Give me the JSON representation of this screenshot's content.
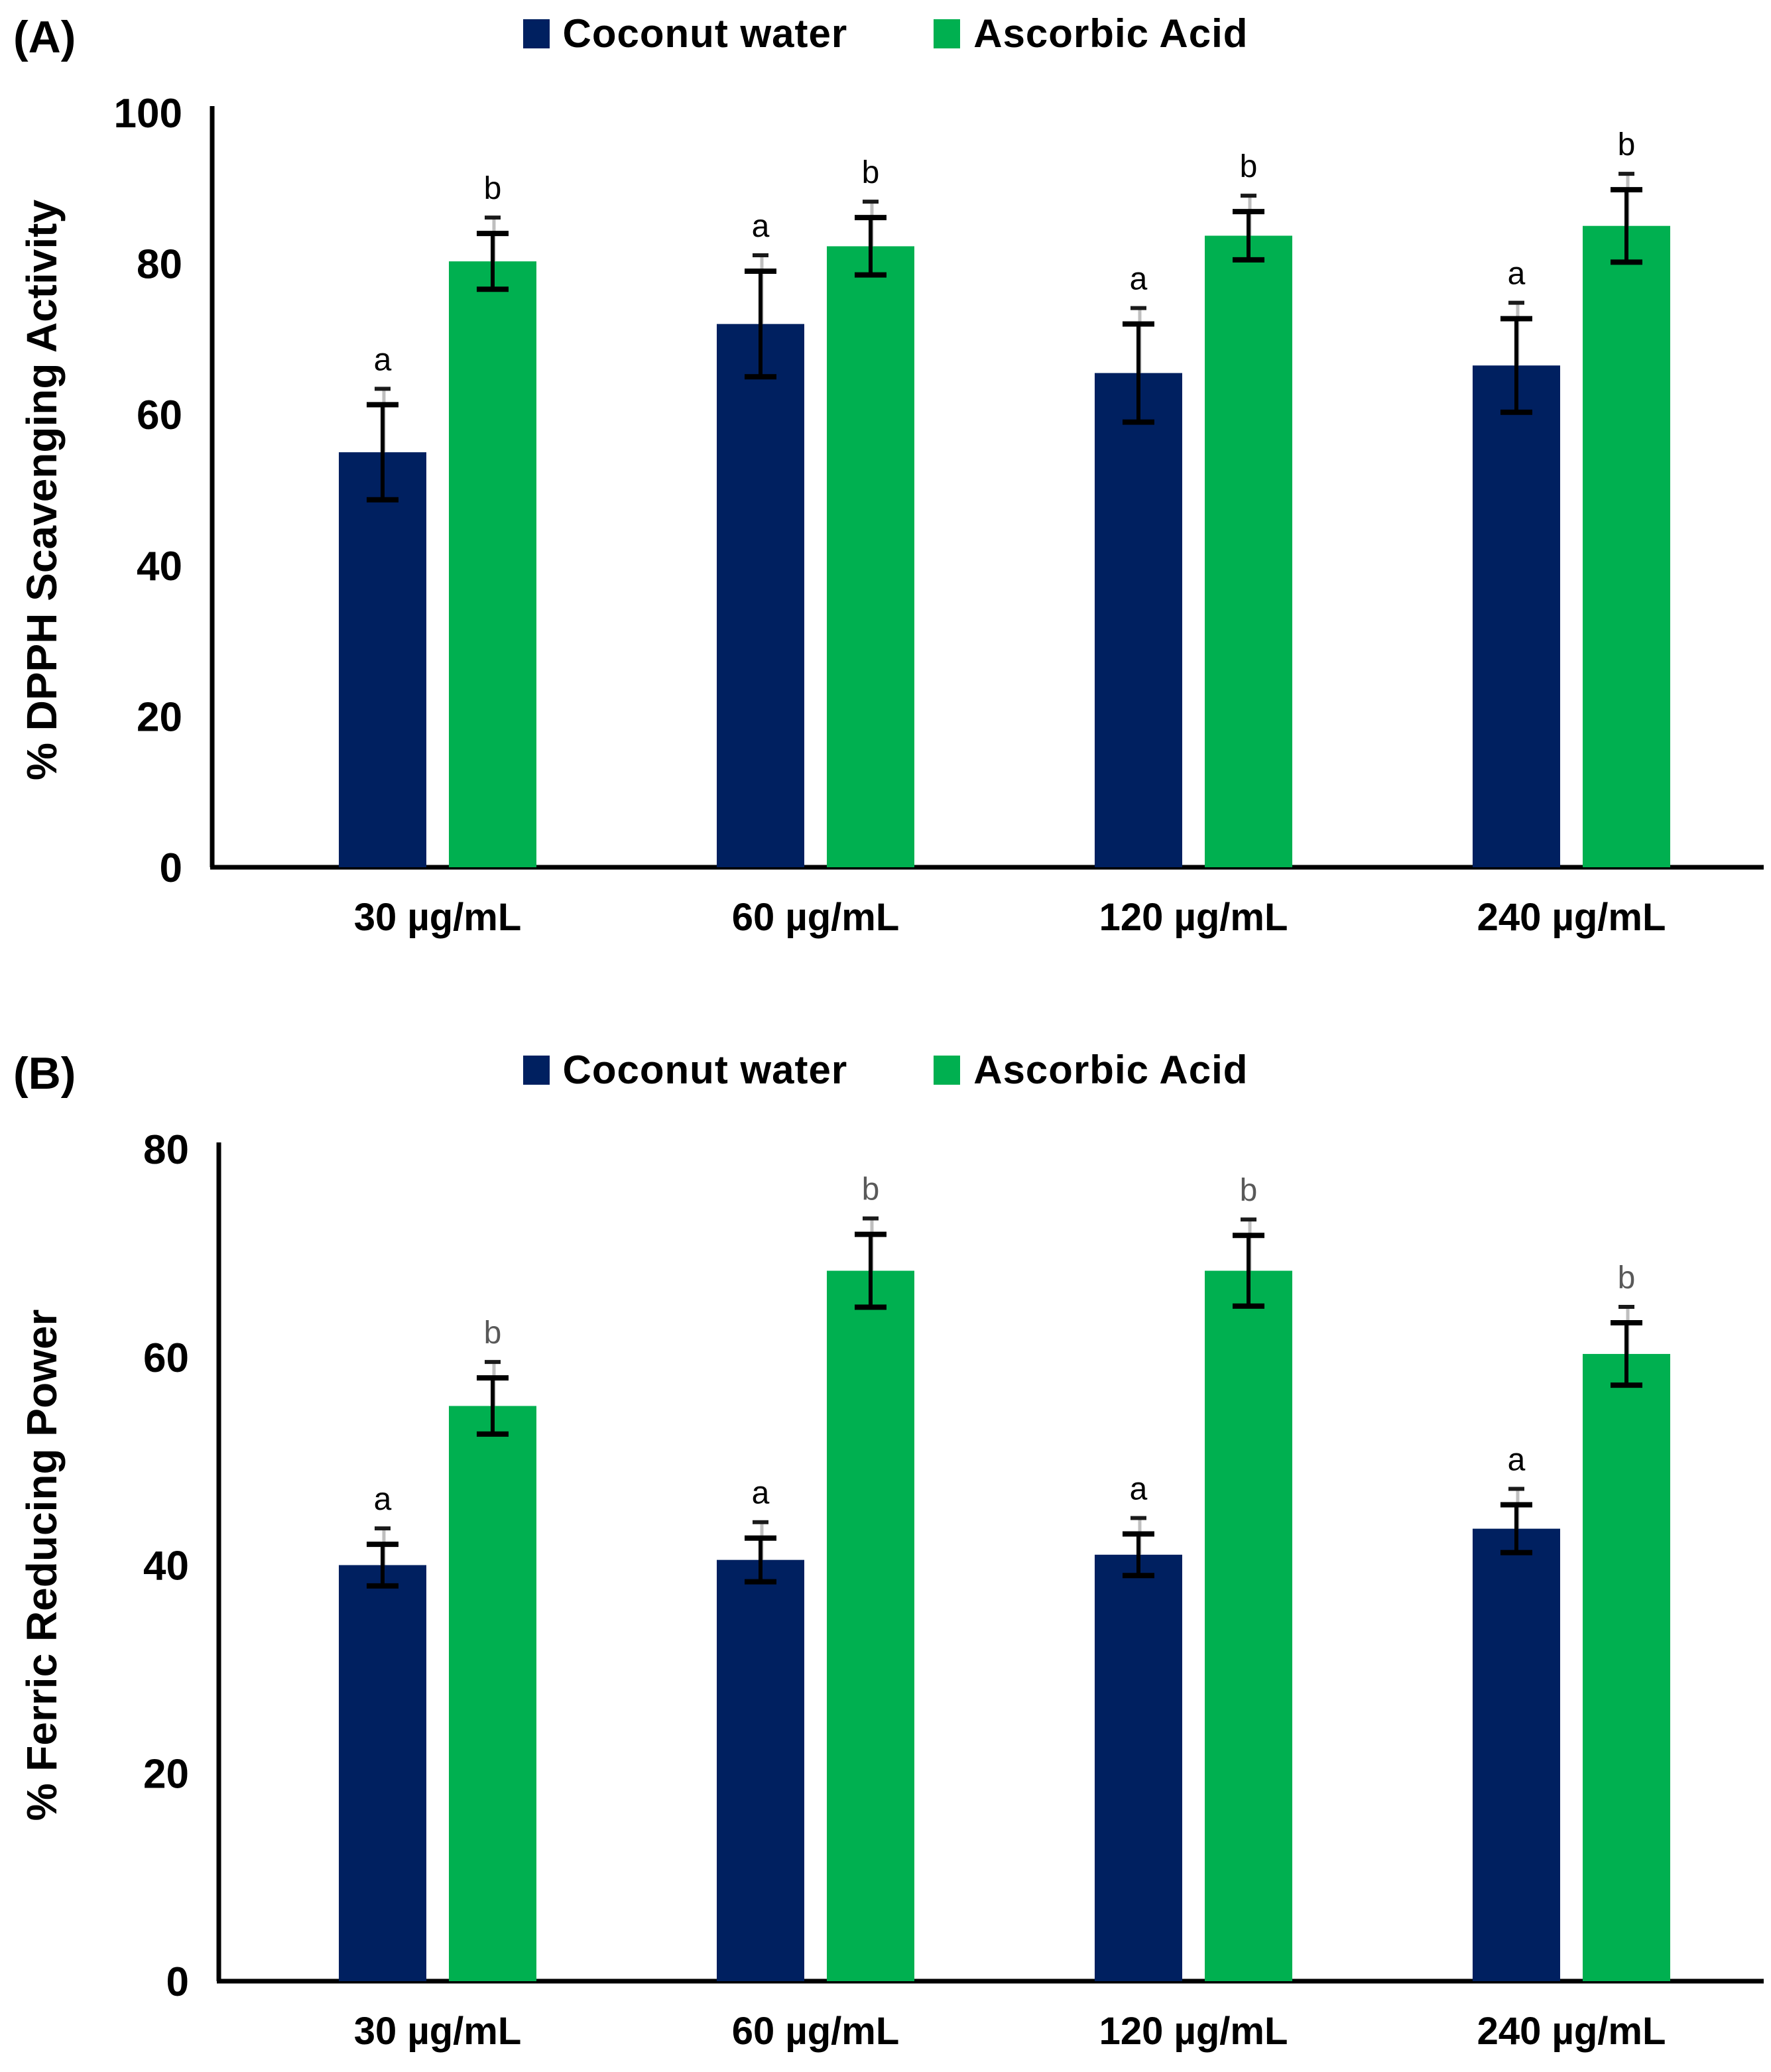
{
  "figure": {
    "panel_a_label": "(A)",
    "panel_b_label": "(B)"
  },
  "legend": {
    "coconut_water": "Coconut water",
    "ascorbic_acid": "Ascorbic Acid"
  },
  "colors": {
    "coconut_water": "#002060",
    "ascorbic_acid": "#00B050",
    "letter_black": "#000000",
    "letter_gray": "#595959",
    "error_bar": "#000000",
    "error_stem_gray": "#bfbfbf",
    "axis": "#000000"
  },
  "chart_data": [
    {
      "type": "bar",
      "title_label": "(A)",
      "ylabel": "% DPPH Scavenging Activity",
      "xlabel": "",
      "ylim": [
        0,
        100
      ],
      "ytick_step": 20,
      "yticks": [
        0,
        20,
        40,
        60,
        80,
        100
      ],
      "grid": false,
      "legend_position": "top-center",
      "categories": [
        "30 µg/mL",
        "60 µg/mL",
        "120 µg/mL",
        "240 µg/mL"
      ],
      "series": [
        {
          "name": "Coconut water",
          "color": "#002060",
          "values": [
            55,
            72,
            65.5,
            66.5
          ],
          "errors": [
            6.3,
            7.0,
            6.5,
            6.2
          ],
          "sig_letters": [
            "a",
            "a",
            "a",
            "a"
          ],
          "letter_color": "#000000"
        },
        {
          "name": "Ascorbic Acid",
          "color": "#00B050",
          "values": [
            80.3,
            82.3,
            83.7,
            85
          ],
          "errors": [
            3.7,
            3.8,
            3.2,
            4.8
          ],
          "sig_letters": [
            "b",
            "b",
            "b",
            "b"
          ],
          "letter_color": "#000000"
        }
      ]
    },
    {
      "type": "bar",
      "title_label": "(B)",
      "ylabel": "% Ferric Reducing Power",
      "xlabel": "",
      "ylim": [
        0,
        80
      ],
      "ytick_step": 20,
      "yticks": [
        0,
        20,
        40,
        60,
        80
      ],
      "grid": false,
      "legend_position": "top-center",
      "categories": [
        "30 µg/mL",
        "60 µg/mL",
        "120 µg/mL",
        "240 µg/mL"
      ],
      "series": [
        {
          "name": "Coconut water",
          "color": "#002060",
          "values": [
            40,
            40.5,
            41,
            43.5
          ],
          "errors": [
            2.0,
            2.1,
            2.0,
            2.3
          ],
          "sig_letters": [
            "a",
            "a",
            "a",
            "a"
          ],
          "letter_color": "#000000"
        },
        {
          "name": "Ascorbic Acid",
          "color": "#00B050",
          "values": [
            55.3,
            68.3,
            68.3,
            60.3
          ],
          "errors": [
            2.7,
            3.5,
            3.4,
            3.0
          ],
          "sig_letters": [
            "b",
            "b",
            "b",
            "b"
          ],
          "letter_color": "#595959"
        }
      ]
    }
  ]
}
